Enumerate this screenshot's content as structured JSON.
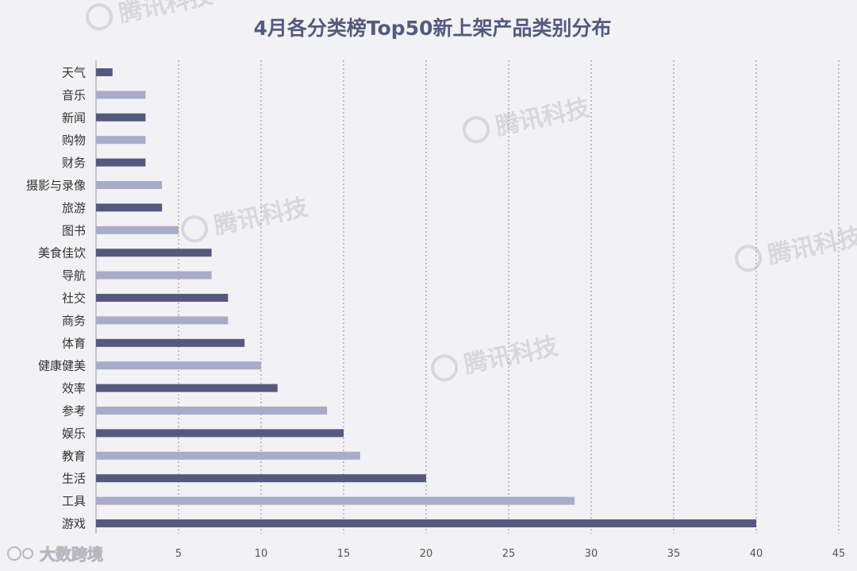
{
  "chart_data": {
    "type": "bar",
    "orientation": "horizontal",
    "title": "4月各分类榜Top50新上架产品类别分布",
    "categories": [
      "天气",
      "音乐",
      "新闻",
      "购物",
      "财务",
      "摄影与录像",
      "旅游",
      "图书",
      "美食佳饮",
      "导航",
      "社交",
      "商务",
      "体育",
      "健康健美",
      "效率",
      "参考",
      "娱乐",
      "教育",
      "生活",
      "工具",
      "游戏"
    ],
    "values": [
      1,
      3,
      3,
      3,
      3,
      4,
      4,
      5,
      7,
      7,
      8,
      8,
      9,
      10,
      11,
      14,
      15,
      16,
      20,
      29,
      40
    ],
    "xlim": [
      0,
      45
    ],
    "xticks": [
      0,
      5,
      10,
      15,
      20,
      25,
      30,
      35,
      40,
      45
    ],
    "grid": true,
    "legend": "none",
    "colors": {
      "dark": "#56597f",
      "light": "#a9abc9"
    }
  },
  "watermarks": {
    "main": "腾讯科技",
    "corner": "大数跨境"
  }
}
